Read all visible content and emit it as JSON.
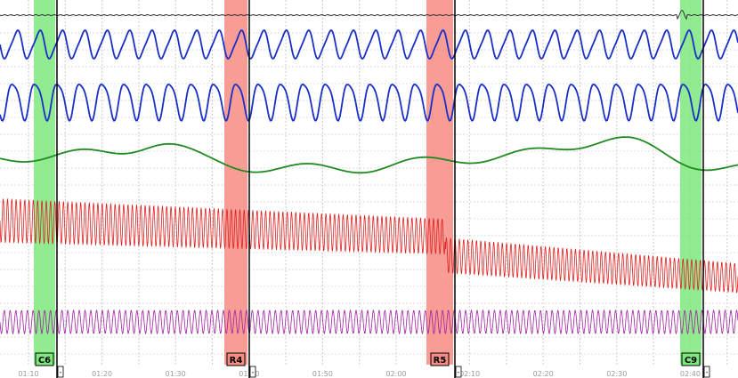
{
  "time_axis": {
    "labels": [
      "01:10",
      "01:20",
      "01:30",
      "01:40",
      "01:50",
      "02:00",
      "02:10",
      "02:20",
      "02:30",
      "02:40"
    ]
  },
  "markers": [
    {
      "label": "C6",
      "end_tag": "-"
    },
    {
      "label": "R4",
      "end_tag": "-"
    },
    {
      "label": "R5",
      "end_tag": "-"
    },
    {
      "label": "C9",
      "end_tag": "-"
    }
  ]
}
